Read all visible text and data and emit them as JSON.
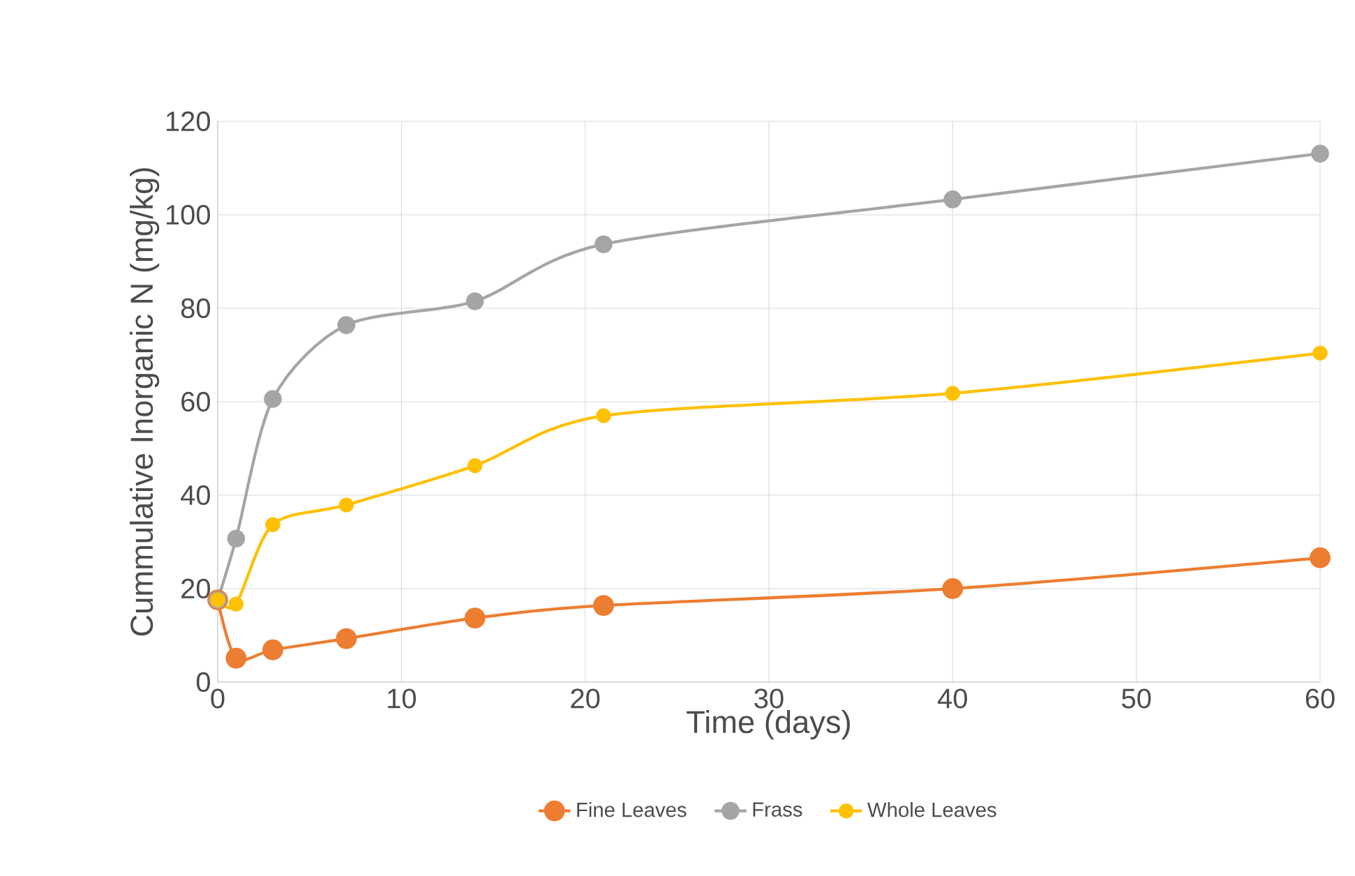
{
  "chart_data": {
    "type": "line",
    "xlabel": "Time (days)",
    "ylabel": "Cummulative Inorganic N (mg/kg)",
    "x": [
      0,
      1,
      3,
      7,
      14,
      21,
      40,
      60
    ],
    "series": [
      {
        "name": "Fine Leaves",
        "color": "#ed7d31",
        "values": [
          17.6,
          5.1,
          6.9,
          9.3,
          13.7,
          16.4,
          20,
          26.6
        ]
      },
      {
        "name": "Frass",
        "color": "#a5a5a5",
        "values": [
          17.6,
          30.7,
          60.6,
          76.4,
          81.5,
          93.7,
          103.3,
          113.1
        ]
      },
      {
        "name": "Whole Leaves",
        "color": "#ffc000",
        "values": [
          17.6,
          16.7,
          33.7,
          37.9,
          46.3,
          57,
          61.8,
          70.4
        ]
      }
    ],
    "xlim": [
      0,
      60
    ],
    "ylim": [
      0,
      120
    ],
    "xticks": [
      0,
      10,
      20,
      30,
      40,
      50,
      60
    ],
    "yticks": [
      0,
      20,
      40,
      60,
      80,
      100,
      120
    ],
    "grid": true,
    "legend": "bottom",
    "marker": "circle"
  }
}
